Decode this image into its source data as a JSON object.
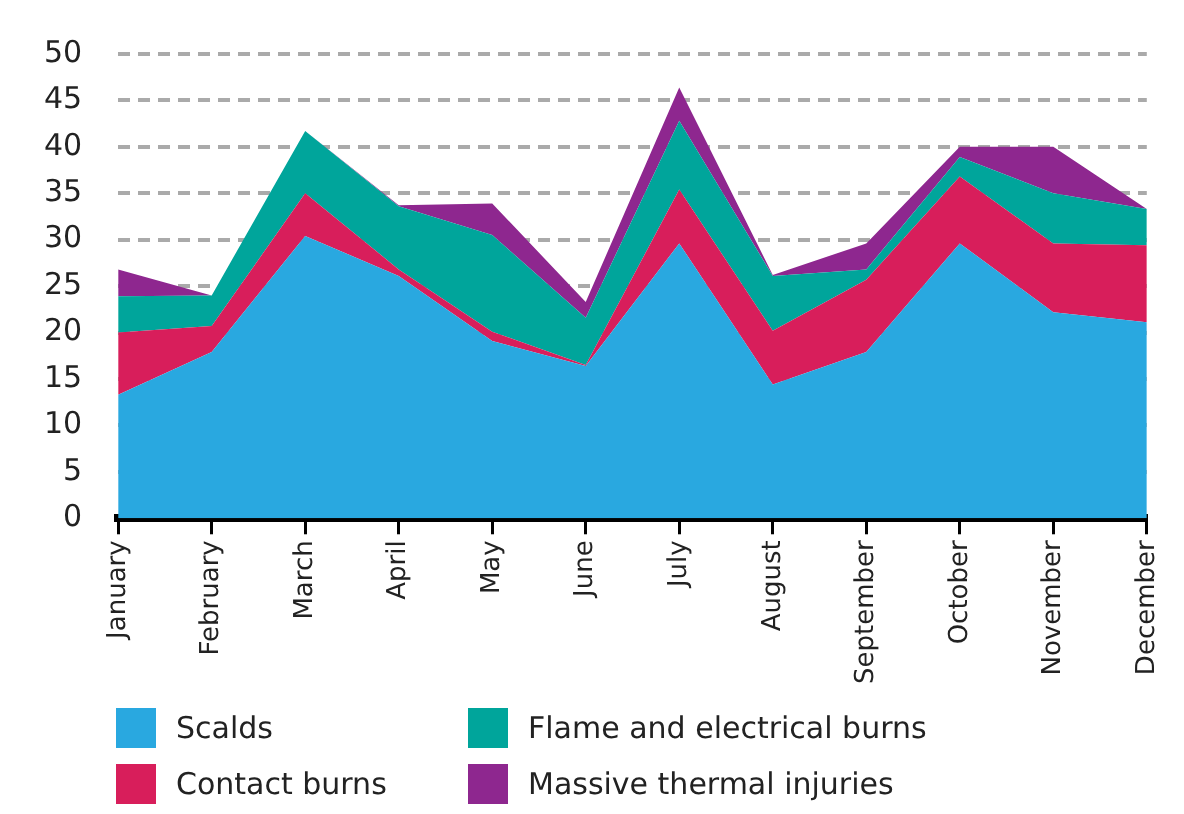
{
  "chart_data": {
    "type": "area",
    "stacked": true,
    "categories": [
      "January",
      "February",
      "March",
      "April",
      "May",
      "June",
      "July",
      "August",
      "September",
      "October",
      "November",
      "December"
    ],
    "series": [
      {
        "name": "Scalds",
        "color": "#29a8e0",
        "values": [
          13.3,
          17.9,
          30.4,
          26.1,
          19.1,
          16.4,
          29.6,
          14.4,
          17.9,
          29.6,
          22.2,
          21.1
        ]
      },
      {
        "name": "Contact burns",
        "color": "#d81e5b",
        "values": [
          6.7,
          2.8,
          4.6,
          0.7,
          1.0,
          0.1,
          5.8,
          5.8,
          7.8,
          7.2,
          7.4,
          8.3
        ]
      },
      {
        "name": "Flame and electrical burns",
        "color": "#00a59b",
        "values": [
          3.9,
          3.3,
          6.7,
          6.8,
          10.4,
          5.1,
          7.4,
          5.9,
          1.1,
          2.1,
          5.4,
          3.9
        ]
      },
      {
        "name": "Massive thermal injuries",
        "color": "#8e278f",
        "values": [
          2.9,
          0,
          0,
          0.1,
          3.4,
          1.7,
          3.6,
          0.1,
          2.8,
          1.1,
          5,
          0
        ]
      }
    ],
    "ylim": [
      0,
      50
    ],
    "yticks": [
      0,
      5,
      10,
      15,
      20,
      25,
      30,
      35,
      40,
      45,
      50
    ],
    "grid": "y",
    "legend": "bottom"
  }
}
